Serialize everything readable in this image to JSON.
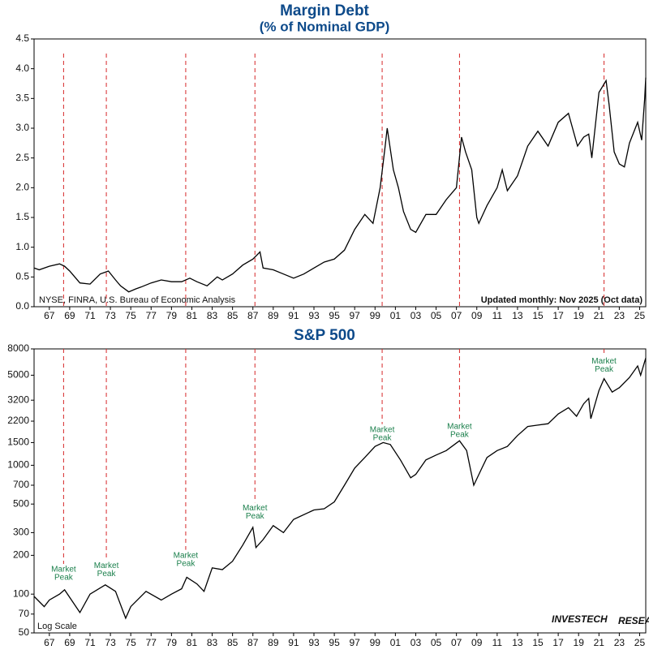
{
  "chart_data": [
    {
      "type": "line",
      "title": "Margin Debt",
      "subtitle": "(% of Nominal GDP)",
      "color": "#000000",
      "peak_color": "#d62728",
      "source": "NYSE, FINRA, U.S. Bureau of Economic Analysis",
      "update_note": "Updated monthly: Nov 2025 (Oct data)",
      "x": [
        1965.5,
        1966,
        1967,
        1968,
        1968.5,
        1969,
        1970,
        1971,
        1972,
        1972.8,
        1973.5,
        1974,
        1974.8,
        1975.5,
        1976,
        1977,
        1978,
        1979,
        1980,
        1980.8,
        1981.5,
        1982.5,
        1983.5,
        1984,
        1985,
        1986,
        1987,
        1987.7,
        1988,
        1989,
        1990,
        1991,
        1992,
        1993,
        1994,
        1995,
        1996,
        1997,
        1998,
        1998.8,
        1999.5,
        2000,
        2000.2,
        2000.8,
        2001.3,
        2001.8,
        2002.5,
        2003,
        2004,
        2005,
        2006,
        2007,
        2007.5,
        2007.9,
        2008.5,
        2009,
        2009.2,
        2010,
        2011,
        2011.5,
        2012,
        2013,
        2014,
        2015,
        2016,
        2017,
        2018,
        2018.9,
        2019.5,
        2020,
        2020.3,
        2021,
        2021.7,
        2022,
        2022.5,
        2023,
        2023.5,
        2024,
        2024.8,
        2025.2,
        2025.5,
        2025.6
      ],
      "values": [
        0.65,
        0.62,
        0.68,
        0.72,
        0.68,
        0.6,
        0.4,
        0.38,
        0.55,
        0.6,
        0.45,
        0.35,
        0.25,
        0.3,
        0.33,
        0.4,
        0.45,
        0.42,
        0.42,
        0.48,
        0.42,
        0.35,
        0.5,
        0.45,
        0.55,
        0.7,
        0.8,
        0.92,
        0.65,
        0.62,
        0.55,
        0.48,
        0.55,
        0.65,
        0.75,
        0.8,
        0.95,
        1.3,
        1.55,
        1.4,
        2.0,
        2.7,
        3.0,
        2.3,
        2.0,
        1.6,
        1.3,
        1.25,
        1.55,
        1.55,
        1.8,
        2.0,
        2.85,
        2.6,
        2.3,
        1.5,
        1.4,
        1.7,
        2.0,
        2.3,
        1.95,
        2.2,
        2.7,
        2.95,
        2.7,
        3.1,
        3.25,
        2.7,
        2.85,
        2.9,
        2.5,
        3.6,
        3.8,
        3.4,
        2.6,
        2.4,
        2.35,
        2.75,
        3.1,
        2.8,
        3.5,
        3.85
      ],
      "peaks": [
        1968.4,
        1972.6,
        1980.4,
        1987.2,
        1999.7,
        2007.3,
        2021.5
      ],
      "xlim": [
        1965.5,
        2025.6
      ],
      "ylim": [
        0,
        4.5
      ],
      "yticks": [
        {
          "value": 0,
          "label": "0.0"
        },
        0.5,
        {
          "value": 1,
          "label": "1.0"
        },
        1.5,
        {
          "value": 2,
          "label": "2.0"
        },
        2.5,
        {
          "value": 3,
          "label": "3.0"
        },
        3.5,
        {
          "value": 4,
          "label": "4.0"
        },
        4.5
      ],
      "xticks": [
        {
          "value": 1967,
          "label": "67"
        },
        {
          "value": 1969,
          "label": "69"
        },
        {
          "value": 1971,
          "label": "71"
        },
        {
          "value": 1973,
          "label": "73"
        },
        {
          "value": 1975,
          "label": "75"
        },
        {
          "value": 1977,
          "label": "77"
        },
        {
          "value": 1979,
          "label": "79"
        },
        {
          "value": 1981,
          "label": "81"
        },
        {
          "value": 1983,
          "label": "83"
        },
        {
          "value": 1985,
          "label": "85"
        },
        {
          "value": 1987,
          "label": "87"
        },
        {
          "value": 1989,
          "label": "89"
        },
        {
          "value": 1991,
          "label": "91"
        },
        {
          "value": 1993,
          "label": "93"
        },
        {
          "value": 1995,
          "label": "95"
        },
        {
          "value": 1997,
          "label": "97"
        },
        {
          "value": 1999,
          "label": "99"
        },
        {
          "value": 2001,
          "label": "01"
        },
        {
          "value": 2003,
          "label": "03"
        },
        {
          "value": 2005,
          "label": "05"
        },
        {
          "value": 2007,
          "label": "07"
        },
        {
          "value": 2009,
          "label": "09"
        },
        {
          "value": 2011,
          "label": "11"
        },
        {
          "value": 2013,
          "label": "13"
        },
        {
          "value": 2015,
          "label": "15"
        },
        {
          "value": 2017,
          "label": "17"
        },
        {
          "value": 2019,
          "label": "19"
        },
        {
          "value": 2021,
          "label": "21"
        },
        {
          "value": 2023,
          "label": "23"
        },
        {
          "value": 2025,
          "label": "25"
        }
      ]
    },
    {
      "type": "line",
      "title": "S&P 500",
      "color": "#000000",
      "peak_color": "#d62728",
      "log_scale": true,
      "scale_note": "Log Scale",
      "logo": [
        "INVESTECH",
        "RESEARCH"
      ],
      "x": [
        1965.5,
        1966.5,
        1967,
        1968,
        1968.5,
        1970,
        1971,
        1972.5,
        1973.5,
        1974.5,
        1975,
        1976.5,
        1978,
        1979,
        1980,
        1980.5,
        1981.5,
        1982.2,
        1983,
        1984,
        1985,
        1986,
        1987,
        1987.3,
        1988,
        1989,
        1990,
        1991,
        1993,
        1994,
        1995,
        1996,
        1997,
        1998,
        1999,
        1999.8,
        2000.5,
        2001.5,
        2002.5,
        2003,
        2004,
        2005,
        2006,
        2007.3,
        2008,
        2008.7,
        2009.5,
        2010,
        2011,
        2012,
        2013,
        2014,
        2015,
        2016,
        2017,
        2018,
        2018.8,
        2019.5,
        2020,
        2020.2,
        2021,
        2021.5,
        2022.3,
        2023,
        2024,
        2024.8,
        2025.1,
        2025.6
      ],
      "values": [
        96,
        80,
        90,
        100,
        108,
        72,
        100,
        118,
        105,
        65,
        80,
        105,
        90,
        100,
        110,
        135,
        120,
        105,
        160,
        155,
        180,
        240,
        330,
        230,
        265,
        340,
        300,
        380,
        450,
        460,
        520,
        700,
        950,
        1150,
        1400,
        1500,
        1450,
        1100,
        800,
        850,
        1100,
        1200,
        1300,
        1550,
        1300,
        700,
        950,
        1150,
        1300,
        1400,
        1700,
        2000,
        2050,
        2100,
        2500,
        2800,
        2400,
        3000,
        3300,
        2300,
        3800,
        4700,
        3700,
        4000,
        4800,
        5900,
        5000,
        6800
      ],
      "peaks": [
        1968.4,
        1972.6,
        1980.4,
        1987.2,
        1999.7,
        2007.3,
        2021.5
      ],
      "annotations": [
        {
          "x": 1968.4,
          "y": 140,
          "text": [
            "Market",
            "Peak"
          ]
        },
        {
          "x": 1972.6,
          "y": 150,
          "text": [
            "Market",
            "Peak"
          ]
        },
        {
          "x": 1980.4,
          "y": 180,
          "text": [
            "Market",
            "Peak"
          ]
        },
        {
          "x": 1987.2,
          "y": 420,
          "text": [
            "Market",
            "Peak"
          ]
        },
        {
          "x": 1999.7,
          "y": 1700,
          "text": [
            "Market",
            "Peak"
          ]
        },
        {
          "x": 2007.3,
          "y": 1800,
          "text": [
            "Market",
            "Peak"
          ]
        },
        {
          "x": 2021.5,
          "y": 5800,
          "text": [
            "Market",
            "Peak"
          ]
        }
      ],
      "xlim": [
        1965.5,
        2025.6
      ],
      "ylim": [
        50,
        8000
      ],
      "yticks": [
        50,
        70,
        100,
        200,
        300,
        500,
        700,
        1000,
        1500,
        2200,
        3200,
        5000,
        8000
      ],
      "xticks": [
        {
          "value": 1967,
          "label": "67"
        },
        {
          "value": 1969,
          "label": "69"
        },
        {
          "value": 1971,
          "label": "71"
        },
        {
          "value": 1973,
          "label": "73"
        },
        {
          "value": 1975,
          "label": "75"
        },
        {
          "value": 1977,
          "label": "77"
        },
        {
          "value": 1979,
          "label": "79"
        },
        {
          "value": 1981,
          "label": "81"
        },
        {
          "value": 1983,
          "label": "83"
        },
        {
          "value": 1985,
          "label": "85"
        },
        {
          "value": 1987,
          "label": "87"
        },
        {
          "value": 1989,
          "label": "89"
        },
        {
          "value": 1991,
          "label": "91"
        },
        {
          "value": 1993,
          "label": "93"
        },
        {
          "value": 1995,
          "label": "95"
        },
        {
          "value": 1997,
          "label": "97"
        },
        {
          "value": 1999,
          "label": "99"
        },
        {
          "value": 2001,
          "label": "01"
        },
        {
          "value": 2003,
          "label": "03"
        },
        {
          "value": 2005,
          "label": "05"
        },
        {
          "value": 2007,
          "label": "07"
        },
        {
          "value": 2009,
          "label": "09"
        },
        {
          "value": 2011,
          "label": "11"
        },
        {
          "value": 2013,
          "label": "13"
        },
        {
          "value": 2015,
          "label": "15"
        },
        {
          "value": 2017,
          "label": "17"
        },
        {
          "value": 2019,
          "label": "19"
        },
        {
          "value": 2021,
          "label": "21"
        },
        {
          "value": 2023,
          "label": "23"
        },
        {
          "value": 2025,
          "label": "25"
        }
      ]
    }
  ]
}
